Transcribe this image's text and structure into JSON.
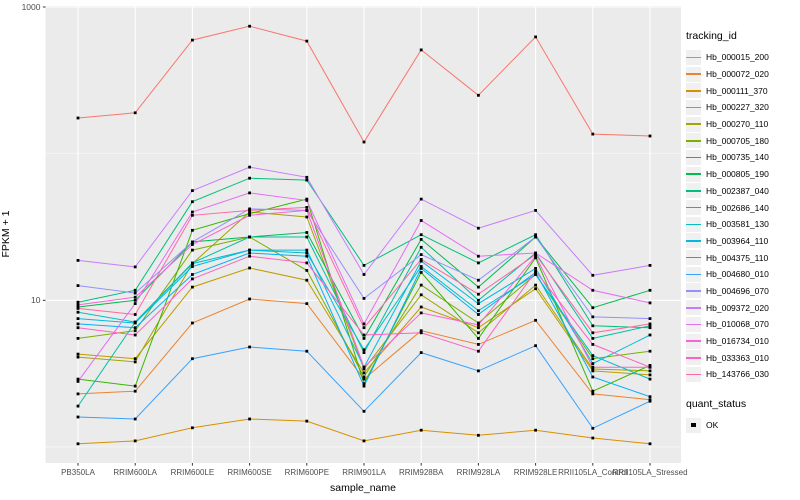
{
  "chart_data": {
    "type": "line",
    "title": "",
    "xlabel": "sample_name",
    "ylabel": "FPKM + 1",
    "y_scale": "log10",
    "ylim": [
      0.77,
      1020
    ],
    "grid": "on",
    "legend_position": "right",
    "legend_title": "tracking_id",
    "quant_legend": {
      "title": "quant_status",
      "label": "OK"
    },
    "y_ticks": [
      {
        "label": "1000",
        "value": 1000
      },
      {
        "label": "10",
        "value": 10
      }
    ],
    "y_minor": [
      100,
      1
    ],
    "categories": [
      "PB350LA",
      "RRIM600LA",
      "RRIM600LE",
      "RRIM600SE",
      "RRIM600PE",
      "RRIM901LA",
      "RRIM928BA",
      "RRIM928LA",
      "RRIM928LE",
      "RRII105LA_Control",
      "RRII105LA_Stressed"
    ],
    "colors": {
      "panel_bg": "#EBEBEB",
      "grid_major": "#FFFFFF",
      "grid_minor": "#FFFFFF",
      "tick_mark": "#333333",
      "tick_text": "#4D4D4D",
      "point": "#000000"
    },
    "series": [
      {
        "name": "Hb_000015_200",
        "color": "#F8766D",
        "values": [
          175,
          190,
          595,
          740,
          585,
          120,
          510,
          250,
          625,
          136,
          132
        ]
      },
      {
        "name": "Hb_000072_020",
        "color": "#EA8331",
        "values": [
          2.3,
          2.4,
          7.0,
          10.2,
          9.5,
          2.9,
          6.2,
          5.0,
          7.3,
          2.3,
          2.1
        ]
      },
      {
        "name": "Hb_000111_370",
        "color": "#D89000",
        "values": [
          1.05,
          1.1,
          1.35,
          1.55,
          1.5,
          1.1,
          1.3,
          1.2,
          1.3,
          1.15,
          1.05
        ]
      },
      {
        "name": "Hb_000227_320",
        "color": "#C09B00",
        "values": [
          4.3,
          4.0,
          12.3,
          16.6,
          13.7,
          3.2,
          9.0,
          6.5,
          12.0,
          3.3,
          3.1
        ]
      },
      {
        "name": "Hb_000270_110",
        "color": "#A3A500",
        "values": [
          4.1,
          3.8,
          17.8,
          40,
          37,
          3.4,
          10.9,
          6.0,
          12.7,
          3.4,
          3.3
        ]
      },
      {
        "name": "Hb_000705_180",
        "color": "#7CAE00",
        "values": [
          5.5,
          6.2,
          22,
          27,
          16,
          3.0,
          12.7,
          7.0,
          15.0,
          4.0,
          4.5
        ]
      },
      {
        "name": "Hb_000735_140",
        "color": "#39B600",
        "values": [
          2.9,
          2.6,
          30,
          39,
          49,
          2.7,
          15.5,
          5.5,
          19.5,
          2.4,
          3.6
        ]
      },
      {
        "name": "Hb_000805_190",
        "color": "#00BB4E",
        "values": [
          9.0,
          10.0,
          25,
          27,
          29,
          5.5,
          26,
          12.3,
          27,
          8.9,
          11.7
        ]
      },
      {
        "name": "Hb_002387_040",
        "color": "#00BF7D",
        "values": [
          9.7,
          11.7,
          47,
          68,
          66,
          17.3,
          28,
          18,
          28,
          6.7,
          6.5
        ]
      },
      {
        "name": "Hb_002686_140",
        "color": "#00C1A3",
        "values": [
          1.9,
          7.1,
          18,
          27,
          27,
          4.4,
          23,
          10,
          21,
          5.5,
          6.7
        ]
      },
      {
        "name": "Hb_003581_130",
        "color": "#00BFC4",
        "values": [
          8.3,
          7.1,
          17.8,
          22,
          21,
          4.6,
          17,
          8.5,
          15,
          4.2,
          2.9
        ]
      },
      {
        "name": "Hb_003964_110",
        "color": "#00BAE0",
        "values": [
          7.5,
          7.0,
          17,
          22,
          22,
          3.5,
          18.5,
          9.5,
          16.5,
          3.7,
          5.8
        ]
      },
      {
        "name": "Hb_004375_110",
        "color": "#00B0F6",
        "values": [
          6.9,
          6.5,
          15,
          21,
          20,
          2.6,
          16.5,
          8.0,
          15.5,
          3.0,
          2.2
        ]
      },
      {
        "name": "Hb_004680_010",
        "color": "#35A2FF",
        "values": [
          1.6,
          1.55,
          4.0,
          4.8,
          4.5,
          1.75,
          4.4,
          3.3,
          4.9,
          1.34,
          2.05
        ]
      },
      {
        "name": "Hb_004696_070",
        "color": "#9590FF",
        "values": [
          12.6,
          11.2,
          25,
          42,
          41,
          10.3,
          20.5,
          13.7,
          27,
          7.7,
          7.5
        ]
      },
      {
        "name": "Hb_009372_020",
        "color": "#C77CFF",
        "values": [
          18.7,
          16.9,
          56,
          81,
          69,
          15.0,
          49,
          31,
          41,
          14.8,
          17.3
        ]
      },
      {
        "name": "Hb_010068_070",
        "color": "#E76BF3",
        "values": [
          2.8,
          9.5,
          40,
          54,
          48,
          6.9,
          35,
          20,
          21,
          11.7,
          9.6
        ]
      },
      {
        "name": "Hb_016734_010",
        "color": "#FA62DB",
        "values": [
          9.3,
          10.5,
          24,
          38,
          41,
          3.5,
          8.2,
          6.8,
          20,
          3.5,
          3.5
        ]
      },
      {
        "name": "Hb_033363_010",
        "color": "#FF61C3",
        "values": [
          6.5,
          5.8,
          14,
          20,
          18,
          5.8,
          6.0,
          4.5,
          15.8,
          5.0,
          3.5
        ]
      },
      {
        "name": "Hb_143766_030",
        "color": "#FF67A4",
        "values": [
          8.8,
          8.0,
          38,
          41,
          43,
          6.5,
          19,
          11,
          20.5,
          6.0,
          6.9
        ]
      }
    ]
  }
}
